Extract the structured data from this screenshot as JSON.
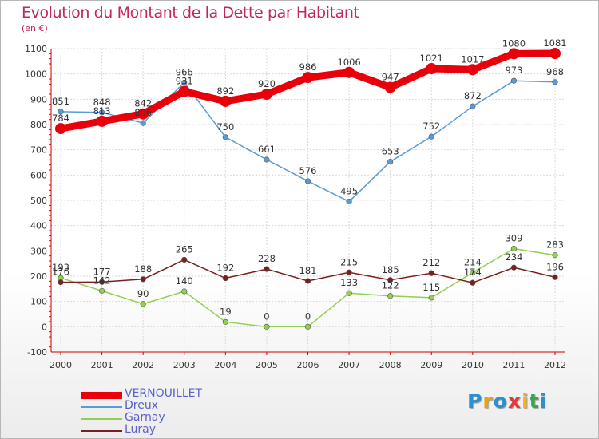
{
  "chart_data": {
    "type": "line",
    "title": "Evolution du Montant de la Dette par Habitant",
    "subtitle": "(en €)",
    "xlabel": "",
    "ylabel": "",
    "x": [
      "2000",
      "2001",
      "2002",
      "2003",
      "2004",
      "2005",
      "2006",
      "2007",
      "2008",
      "2009",
      "2010",
      "2011",
      "2012"
    ],
    "ylim": [
      -100,
      1100
    ],
    "yticks": [
      "-100",
      "0",
      "100",
      "200",
      "300",
      "400",
      "500",
      "600",
      "700",
      "800",
      "900",
      "1000",
      "1100"
    ],
    "grid": true,
    "legend_position": "bottom-left",
    "series": [
      {
        "name": "VERNOUILLET",
        "color": "#e8000b",
        "values": [
          784,
          813,
          842,
          931,
          892,
          920,
          986,
          1006,
          947,
          1021,
          1017,
          1080,
          1081
        ],
        "labels": [
          "784",
          "813",
          "842",
          "931",
          "892",
          "920",
          "986",
          "1006",
          "947",
          "1021",
          "1017",
          "1080",
          "1081"
        ]
      },
      {
        "name": "Dreux",
        "color": "#5b9bd5",
        "values": [
          851,
          848,
          806,
          966,
          750,
          661,
          576,
          495,
          653,
          752,
          872,
          973,
          968
        ],
        "labels": [
          "851",
          "848",
          "806",
          "966",
          "750",
          "661",
          "576",
          "495",
          "653",
          "752",
          "872",
          "973",
          "968"
        ]
      },
      {
        "name": "Garnay",
        "color": "#92d050",
        "values": [
          193,
          142,
          90,
          140,
          19,
          0,
          0,
          133,
          122,
          115,
          214,
          309,
          283
        ],
        "labels": [
          "193",
          "142",
          "90",
          "140",
          "19",
          "0",
          "0",
          "133",
          "122",
          "115",
          "214",
          "309",
          "283"
        ]
      },
      {
        "name": "Luray",
        "color": "#7a1f1f",
        "values": [
          176,
          177,
          188,
          265,
          192,
          228,
          181,
          215,
          185,
          212,
          174,
          234,
          196
        ],
        "labels": [
          "176",
          "177",
          "188",
          "265",
          "192",
          "228",
          "181",
          "215",
          "185",
          "212",
          "174",
          "234",
          "196"
        ]
      }
    ]
  },
  "logo": {
    "letters": [
      {
        "ch": "P",
        "color": "#2b8fd0"
      },
      {
        "ch": "r",
        "color": "#e8a21a"
      },
      {
        "ch": "o",
        "color": "#2b8fd0"
      },
      {
        "ch": "x",
        "color": "#e13b3b"
      },
      {
        "ch": "i",
        "color": "#f0b323"
      },
      {
        "ch": "t",
        "color": "#3aa64a"
      },
      {
        "ch": "i",
        "color": "#2b8fd0"
      }
    ]
  }
}
